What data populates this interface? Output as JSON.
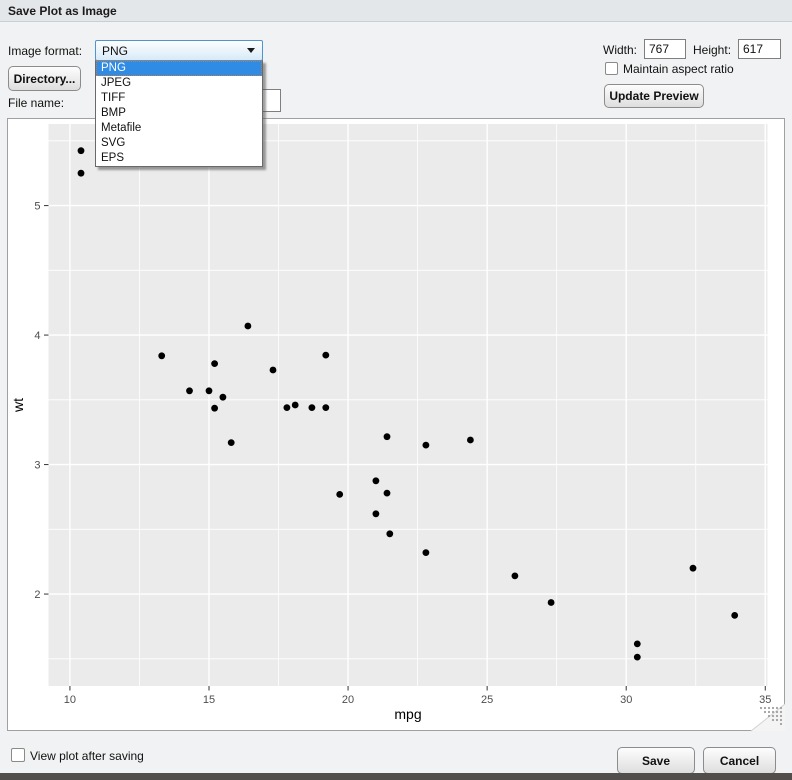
{
  "window": {
    "title": "Save Plot as Image"
  },
  "toolbar": {
    "image_format_label": "Image format:",
    "format_selected": "PNG",
    "format_options": [
      "PNG",
      "JPEG",
      "TIFF",
      "BMP",
      "Metafile",
      "SVG",
      "EPS"
    ],
    "directory_button": "Directory...",
    "file_name_label": "File name:",
    "file_name_value": "",
    "width_label": "Width:",
    "width_value": "767",
    "height_label": "Height:",
    "height_value": "617",
    "maintain_aspect_label": "Maintain aspect ratio",
    "maintain_aspect_checked": false,
    "update_preview_button": "Update Preview"
  },
  "footer": {
    "view_plot_label": "View plot after saving",
    "view_plot_checked": false,
    "save_button": "Save",
    "cancel_button": "Cancel"
  },
  "colors": {
    "titlebar_bg": "#e4e7ea",
    "body_bg": "#f1f2f3",
    "panel_bg": "#ebebeb",
    "grid": "#ffffff",
    "point": "#000000",
    "tick_label": "#4d4d4d",
    "selection_blue": "#2f8be4",
    "combo_border": "#4f94cd",
    "focus_dotted": "#c8773f",
    "window_edge": "#514e4b"
  },
  "chart_data": {
    "type": "scatter",
    "title": "",
    "xlabel": "mpg",
    "ylabel": "wt",
    "x_ticks": [
      10,
      15,
      20,
      25,
      30,
      35
    ],
    "y_ticks": [
      2,
      3,
      4,
      5
    ],
    "x_minor_ticks": [
      12.5,
      17.5,
      22.5,
      27.5,
      32.5
    ],
    "y_minor_ticks": [
      1.5,
      2.5,
      3.5,
      4.5,
      5.5
    ],
    "xlim": [
      9.23,
      35.08
    ],
    "ylim": [
      1.29,
      5.63
    ],
    "grid": "major+minor white on grey",
    "legend": "none",
    "points": [
      [
        21.0,
        2.62
      ],
      [
        21.0,
        2.875
      ],
      [
        22.8,
        2.32
      ],
      [
        21.4,
        3.215
      ],
      [
        18.7,
        3.44
      ],
      [
        18.1,
        3.46
      ],
      [
        14.3,
        3.57
      ],
      [
        24.4,
        3.19
      ],
      [
        22.8,
        3.15
      ],
      [
        19.2,
        3.44
      ],
      [
        17.8,
        3.44
      ],
      [
        16.4,
        4.07
      ],
      [
        17.3,
        3.73
      ],
      [
        15.2,
        3.78
      ],
      [
        10.4,
        5.25
      ],
      [
        10.4,
        5.424
      ],
      [
        14.7,
        5.345
      ],
      [
        32.4,
        2.2
      ],
      [
        30.4,
        1.615
      ],
      [
        33.9,
        1.835
      ],
      [
        21.5,
        2.465
      ],
      [
        15.5,
        3.52
      ],
      [
        15.2,
        3.435
      ],
      [
        13.3,
        3.84
      ],
      [
        19.2,
        3.845
      ],
      [
        27.3,
        1.935
      ],
      [
        26.0,
        2.14
      ],
      [
        30.4,
        1.513
      ],
      [
        15.8,
        3.17
      ],
      [
        19.7,
        2.77
      ],
      [
        15.0,
        3.57
      ],
      [
        21.4,
        2.78
      ]
    ]
  }
}
